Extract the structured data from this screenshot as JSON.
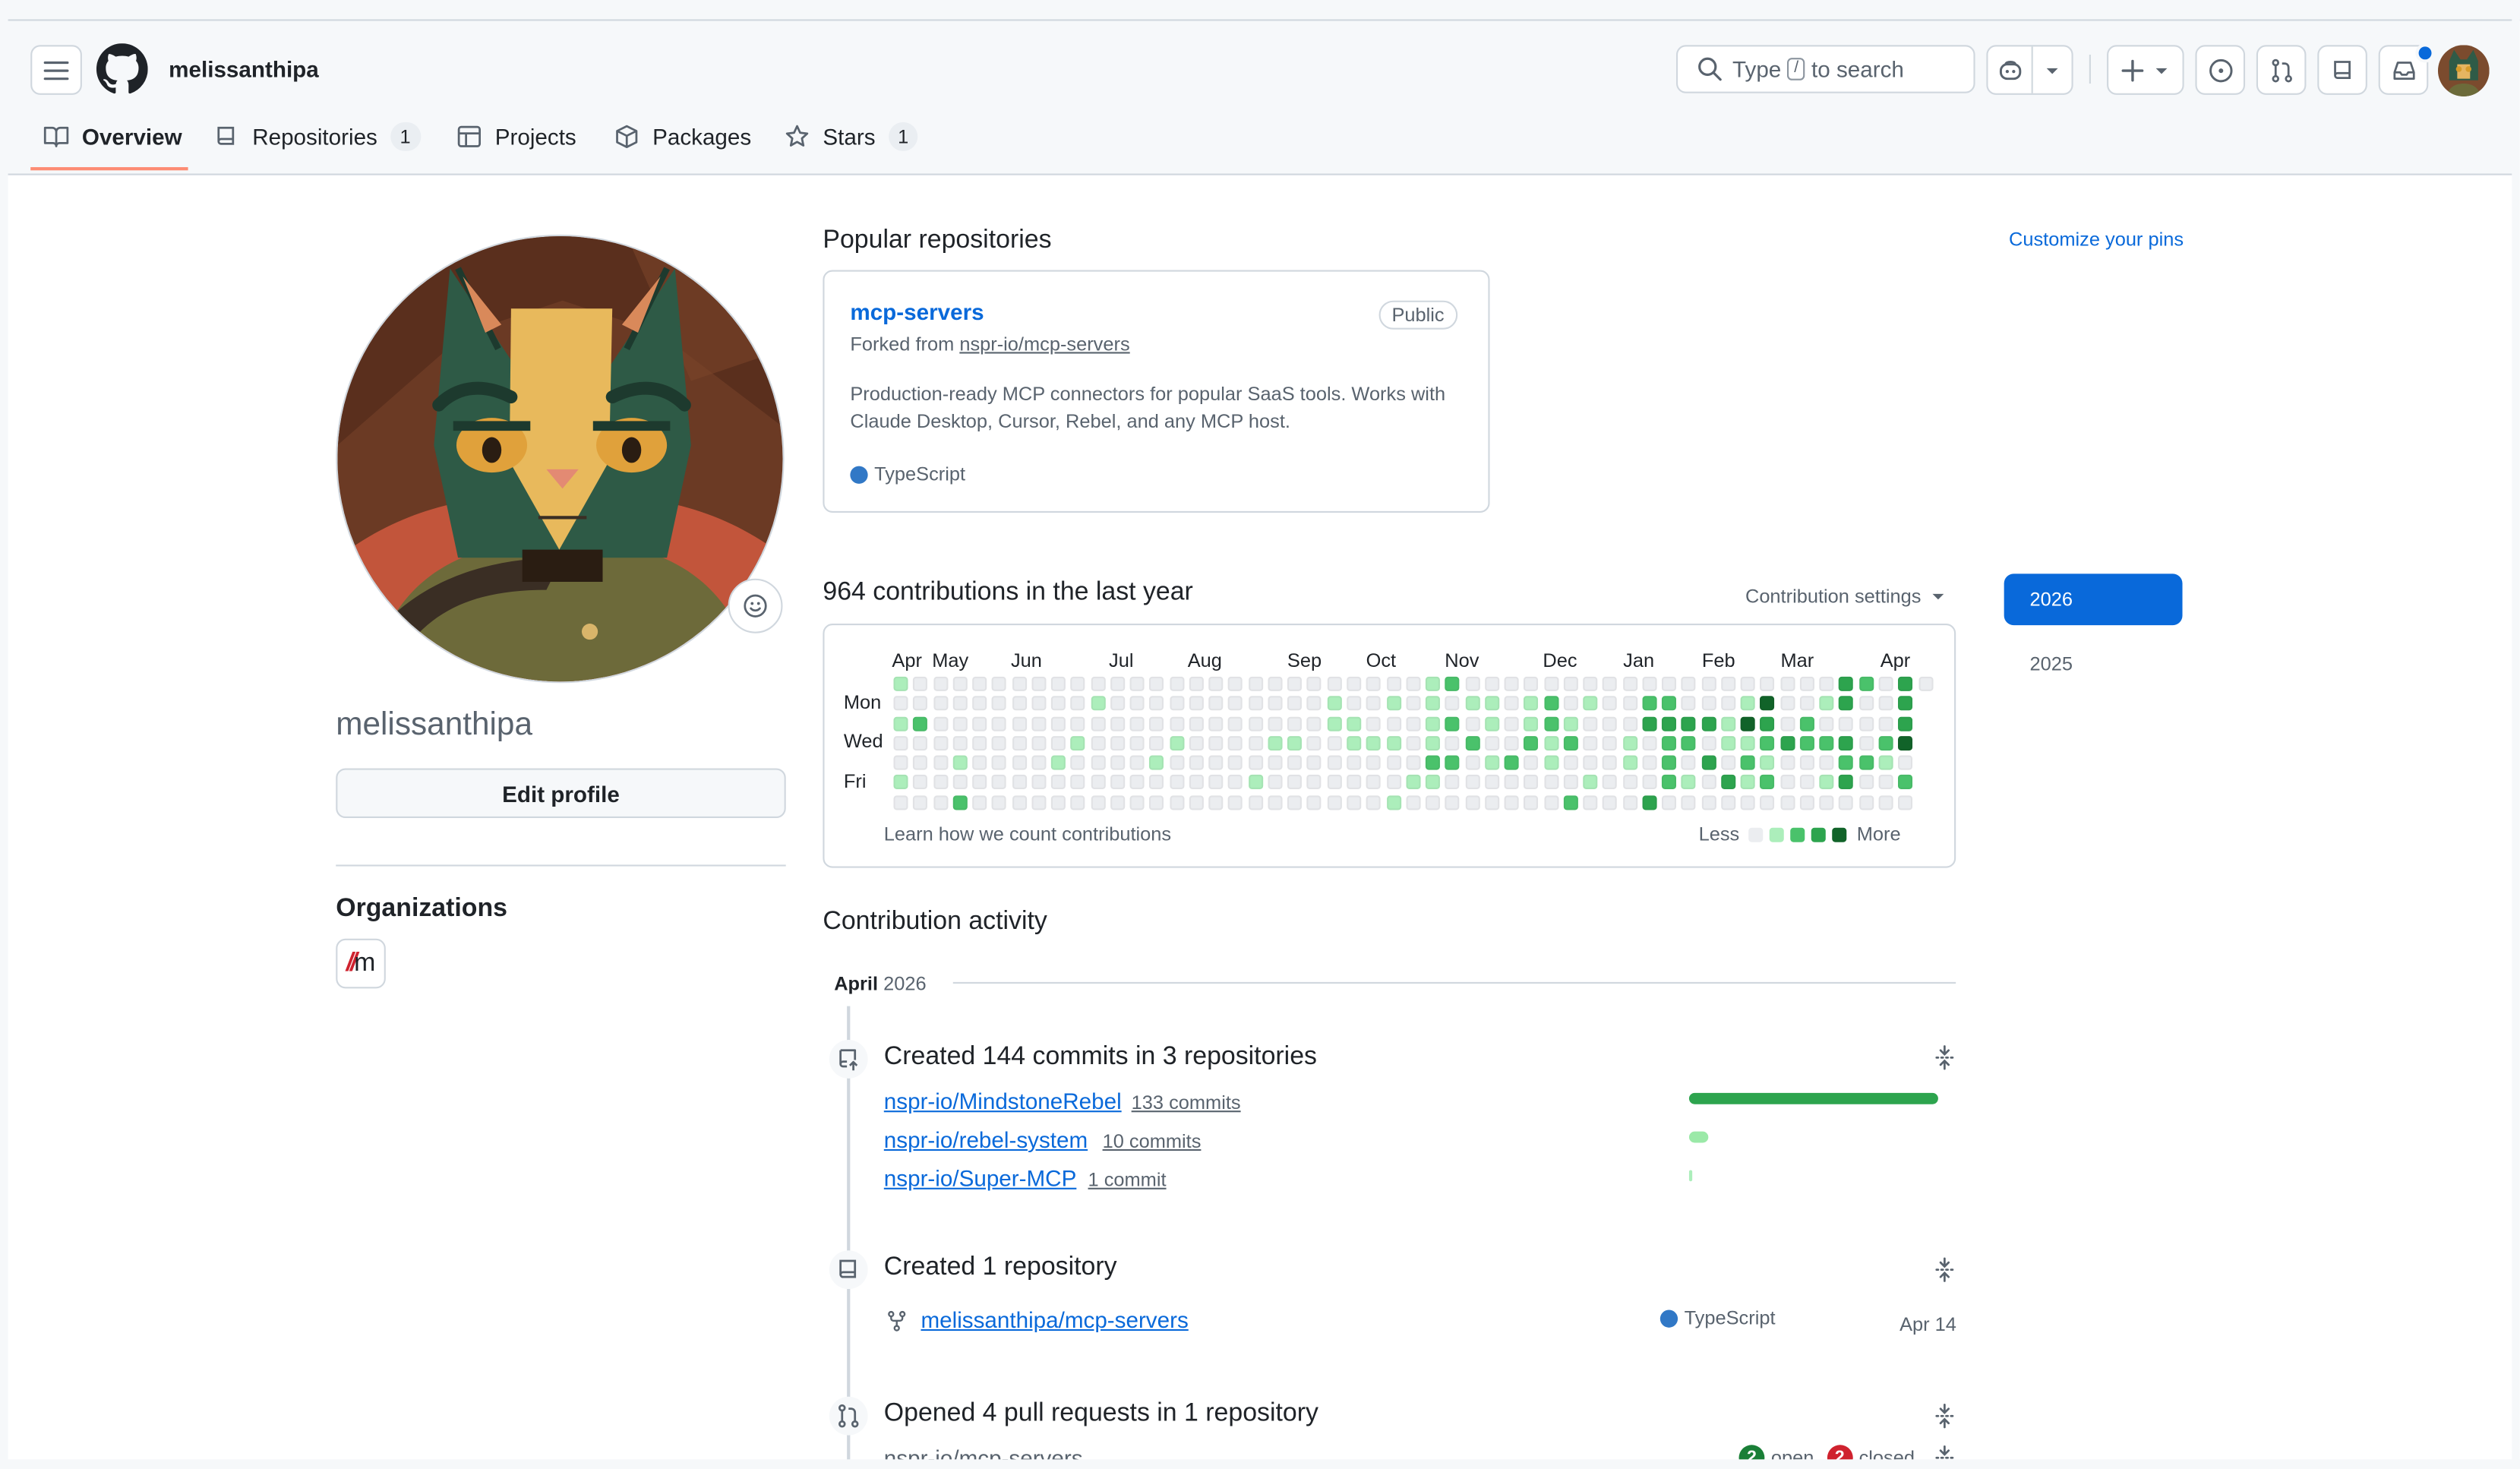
{
  "header": {
    "username": "melissanthipa",
    "search_placeholder_pre": "Type",
    "search_key": "/",
    "search_placeholder_post": "to search"
  },
  "tabs": [
    {
      "label": "Overview",
      "count": "",
      "active": true
    },
    {
      "label": "Repositories",
      "count": "1"
    },
    {
      "label": "Projects",
      "count": ""
    },
    {
      "label": "Packages",
      "count": ""
    },
    {
      "label": "Stars",
      "count": "1"
    }
  ],
  "profile": {
    "name": "melissanthipa",
    "edit_label": "Edit profile",
    "orgs_title": "Organizations",
    "org_badge_slashes": "//",
    "org_badge_letter": "m"
  },
  "popular": {
    "title": "Popular repositories",
    "customize": "Customize your pins",
    "repo": {
      "name": "mcp-servers",
      "visibility": "Public",
      "forked_prefix": "Forked from",
      "forked_from": "nspr-io/mcp-servers",
      "description": "Production-ready MCP connectors for popular SaaS tools. Works with Claude Desktop, Cursor, Rebel, and any MCP host.",
      "language": "TypeScript",
      "language_color": "#3178c6"
    }
  },
  "contributions": {
    "title": "964 contributions in the last year",
    "settings_label": "Contribution settings",
    "months": [
      "Apr",
      "May",
      "Jun",
      "Jul",
      "Aug",
      "Sep",
      "Oct",
      "Nov",
      "Dec",
      "Jan",
      "Feb",
      "Mar",
      "Apr"
    ],
    "days": [
      "Mon",
      "Wed",
      "Fri"
    ],
    "learn": "Learn how we count contributions",
    "legend_less": "Less",
    "legend_more": "More",
    "colors": [
      "#ebedf0",
      "#aceebb",
      "#9be9a8",
      "#4ac26b",
      "#2da44e",
      "#116329"
    ],
    "years": [
      "2026",
      "2025"
    ],
    "selected_year": "2026"
  },
  "activity": {
    "title": "Contribution activity",
    "month_name": "April",
    "month_year": "2026",
    "commits": {
      "title": "Created 144 commits in 3 repositories",
      "repos": [
        {
          "name": "nspr-io/MindstoneRebel",
          "count_label": "133 commits",
          "commits": 133
        },
        {
          "name": "nspr-io/rebel-system",
          "count_label": "10 commits",
          "commits": 10
        },
        {
          "name": "nspr-io/Super-MCP",
          "count_label": "1 commit",
          "commits": 1
        }
      ]
    },
    "created_repo": {
      "title": "Created 1 repository",
      "repo": "melissanthipa/mcp-servers",
      "language": "TypeScript",
      "date": "Apr 14"
    },
    "pull_requests": {
      "title": "Opened 4 pull requests in 1 repository",
      "repo": "nspr-io/mcp-servers",
      "open_count": "2",
      "open_label": "open",
      "closed_count": "2",
      "closed_label": "closed"
    }
  }
}
